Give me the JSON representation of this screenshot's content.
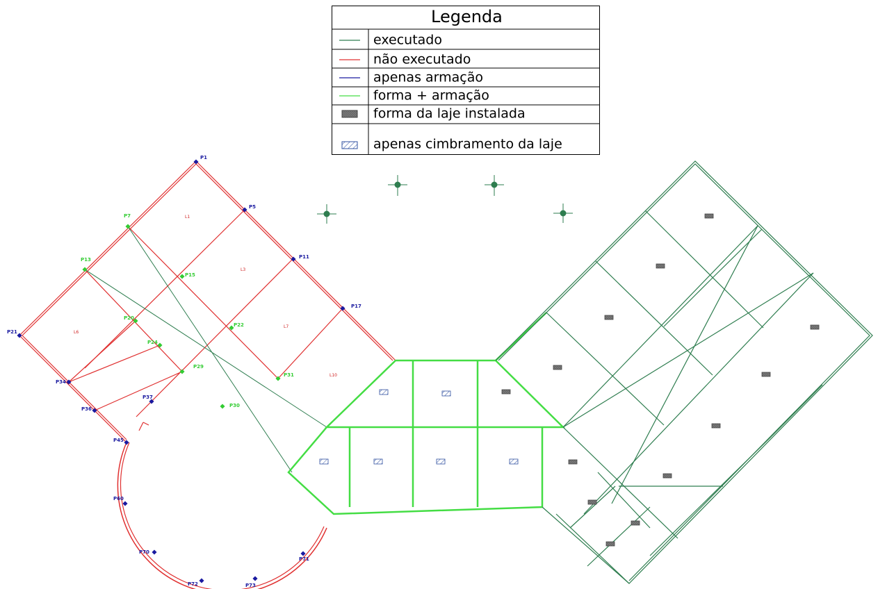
{
  "legend": {
    "title": "Legenda",
    "items": [
      "executado",
      "não executado",
      "apenas armação",
      "forma + armação",
      "forma da laje instalada",
      "apenas cimbramento da laje"
    ]
  },
  "pillars": [
    "P1",
    "P5",
    "P11",
    "P17",
    "P7",
    "P13",
    "P21",
    "P34",
    "P36",
    "P45",
    "P15",
    "P20",
    "P24",
    "P22",
    "P29",
    "P30",
    "P31",
    "P37",
    "P60",
    "P70",
    "P71",
    "P72",
    "P73"
  ],
  "slabs": [
    "L1",
    "L3",
    "L6",
    "L7",
    "L10"
  ]
}
